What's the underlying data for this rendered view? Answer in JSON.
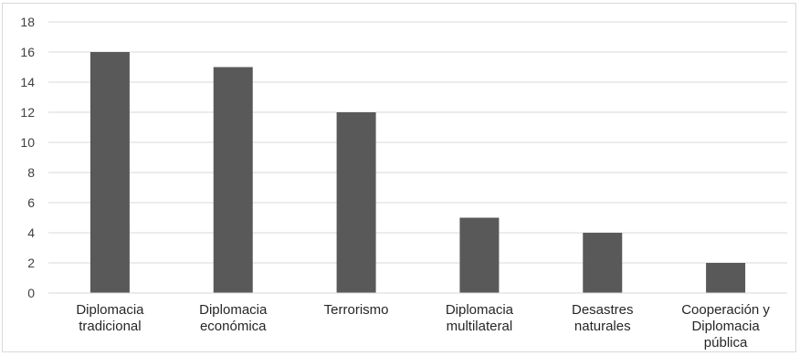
{
  "chart_data": {
    "type": "bar",
    "title": "",
    "xlabel": "",
    "ylabel": "",
    "categories": [
      [
        "Diplomacia",
        "tradicional"
      ],
      [
        "Diplomacia",
        "económica"
      ],
      [
        "Terrorismo"
      ],
      [
        "Diplomacia",
        "multilateral"
      ],
      [
        "Desastres",
        "naturales"
      ],
      [
        "Cooperación y",
        "Diplomacia",
        "pública"
      ]
    ],
    "values": [
      16,
      15,
      12,
      5,
      4,
      2
    ],
    "ylim": [
      0,
      18
    ],
    "yticks": [
      "0",
      "2",
      "4",
      "6",
      "8",
      "10",
      "12",
      "14",
      "16",
      "18"
    ],
    "grid": true,
    "legend": "none",
    "bar_color": "#595959",
    "grid_color": "#d9d9d9"
  }
}
